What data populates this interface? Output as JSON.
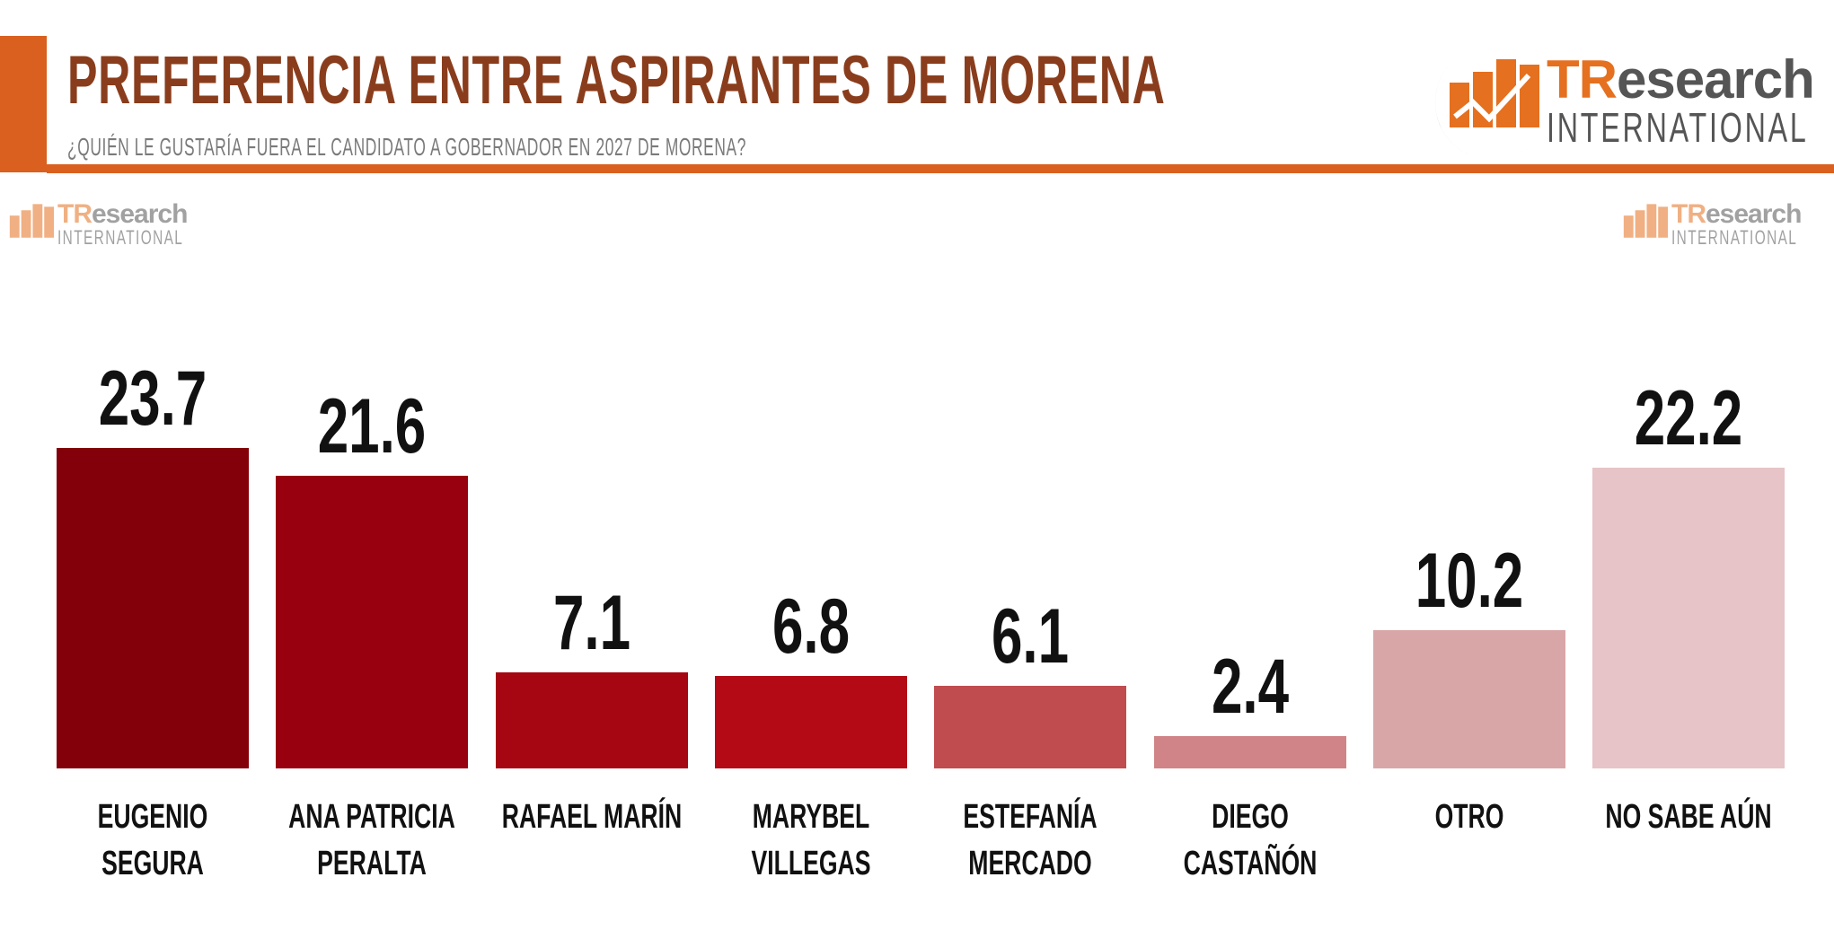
{
  "header": {
    "title": "PREFERENCIA ENTRE ASPIRANTES DE MORENA",
    "subtitle": "¿QUIÉN LE GUSTARÍA FUERA EL CANDIDATO A GOBERNADOR EN 2027 DE MORENA?",
    "accent_color": "#d9601f",
    "title_color": "#8a3d1c"
  },
  "logo": {
    "brand_tr": "TR",
    "brand_rest": "esearch",
    "tagline": "INTERNATIONAL"
  },
  "chart_data": {
    "type": "bar",
    "title": "",
    "xlabel": "",
    "ylabel": "",
    "ylim": [
      0,
      25
    ],
    "grid": false,
    "categories": [
      "EUGENIO\nSEGURA",
      "ANA PATRICIA\nPERALTA",
      "RAFAEL MARÍN",
      "MARYBEL\nVILLEGAS",
      "ESTEFANÍA\nMERCADO",
      "DIEGO\nCASTAÑÓN",
      "OTRO",
      "NO SABE AÚN"
    ],
    "values": [
      23.7,
      21.6,
      7.1,
      6.8,
      6.1,
      2.4,
      10.2,
      22.2
    ],
    "value_labels": [
      "23.7",
      "21.6",
      "7.1",
      "6.8",
      "6.1",
      "2.4",
      "10.2",
      "22.2"
    ],
    "colors": [
      "#83000a",
      "#980010",
      "#a60512",
      "#b30a16",
      "#c04c50",
      "#d08487",
      "#d9a6a8",
      "#e6c4c7"
    ]
  }
}
